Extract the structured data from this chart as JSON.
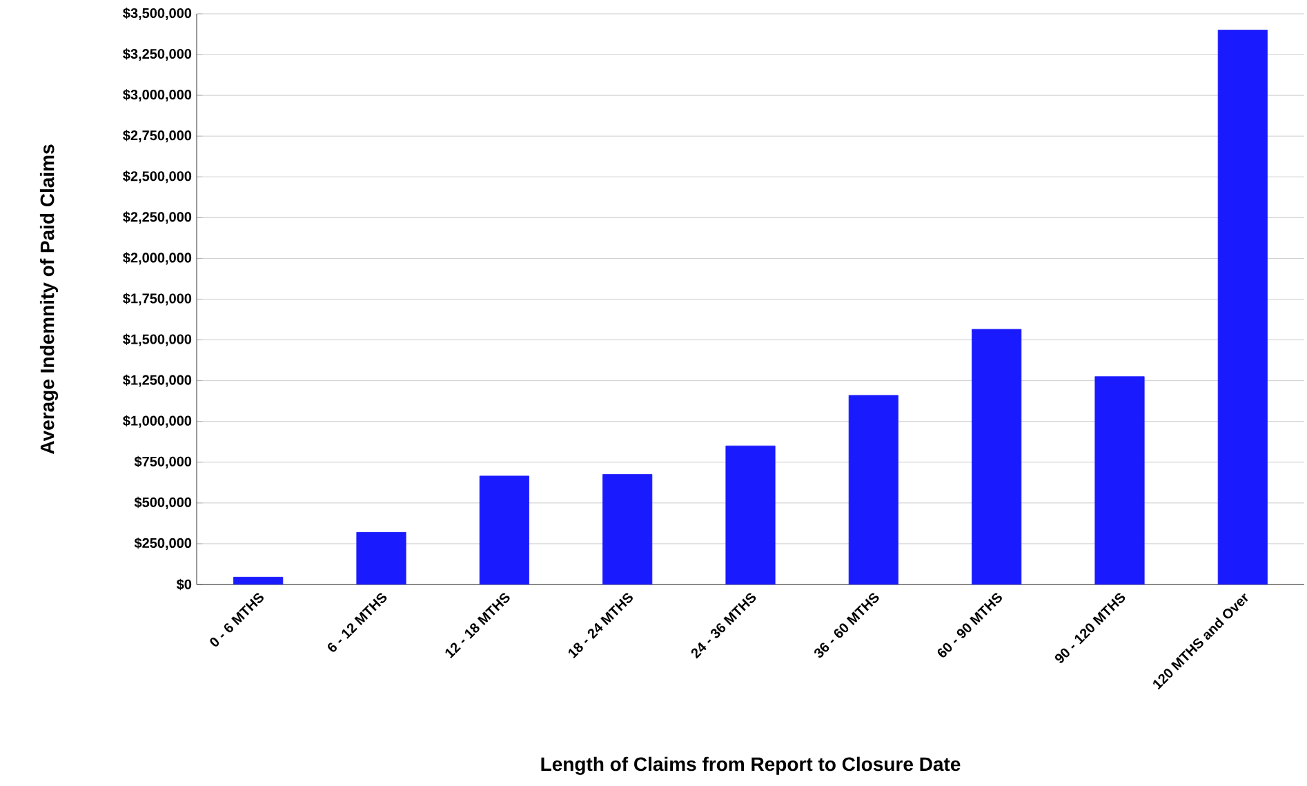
{
  "chart_data": {
    "type": "bar",
    "xlabel": "Length of Claims from Report to Closure Date",
    "ylabel": "Average Indemnity of Paid Claims",
    "categories": [
      "0 - 6 MTHS",
      "6 - 12 MTHS",
      "12 - 18 MTHS",
      "18 - 24 MTHS",
      "24 - 36 MTHS",
      "36 - 60 MTHS",
      "60 - 90 MTHS",
      "90 - 120 MTHS",
      "120 MTHS and Over"
    ],
    "values": [
      45000,
      320000,
      665000,
      675000,
      850000,
      1160000,
      1565000,
      1275000,
      3400000
    ],
    "color": "#1a1aff",
    "ylim": [
      0,
      3500000
    ],
    "yticks": [
      {
        "value": 0,
        "label": "$0"
      },
      {
        "value": 250000,
        "label": "$250,000"
      },
      {
        "value": 500000,
        "label": "$500,000"
      },
      {
        "value": 750000,
        "label": "$750,000"
      },
      {
        "value": 1000000,
        "label": "$1,000,000"
      },
      {
        "value": 1250000,
        "label": "$1,250,000"
      },
      {
        "value": 1500000,
        "label": "$1,500,000"
      },
      {
        "value": 1750000,
        "label": "$1,750,000"
      },
      {
        "value": 2000000,
        "label": "$2,000,000"
      },
      {
        "value": 2250000,
        "label": "$2,250,000"
      },
      {
        "value": 2500000,
        "label": "$2,500,000"
      },
      {
        "value": 2750000,
        "label": "$2,750,000"
      },
      {
        "value": 3000000,
        "label": "$3,000,000"
      },
      {
        "value": 3250000,
        "label": "$3,250,000"
      },
      {
        "value": 3500000,
        "label": "$3,500,000"
      }
    ],
    "grid": "y"
  }
}
